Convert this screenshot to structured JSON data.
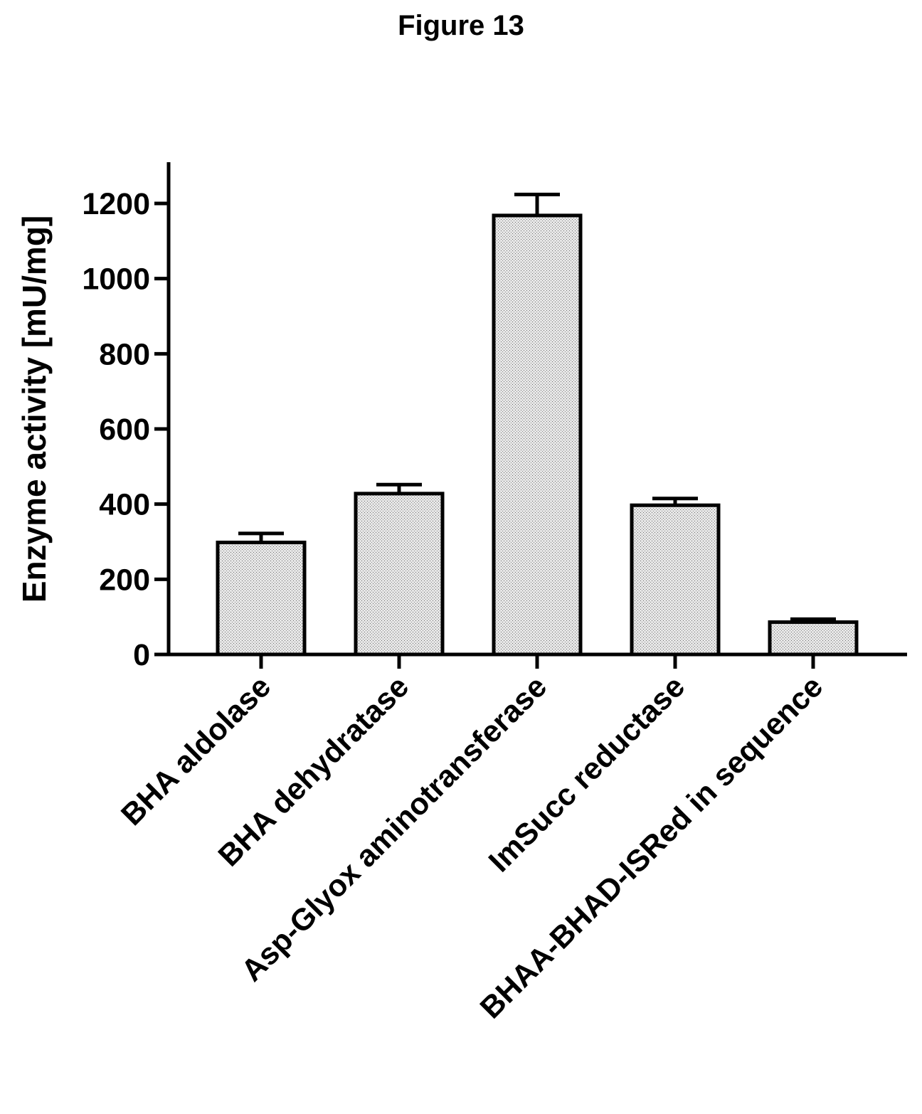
{
  "figure": {
    "title": "Figure 13"
  },
  "chart_data": {
    "type": "bar",
    "ylabel": "Enzyme activity [mU/mg]",
    "xlabel": "",
    "ylim": [
      0,
      1300
    ],
    "yticks": [
      0,
      200,
      400,
      600,
      800,
      1000,
      1200
    ],
    "categories": [
      "BHA aldolase",
      "BHA dehydratase",
      "Asp-Glyox aminotransferase",
      "ImSucc reductase",
      "BHAA-BHAD-ISRed in sequence"
    ],
    "values": [
      298,
      428,
      1168,
      397,
      86
    ],
    "errors": [
      24,
      24,
      56,
      18,
      8
    ],
    "grid": false,
    "legend": "none",
    "bar_fill": "stippled light gray"
  }
}
